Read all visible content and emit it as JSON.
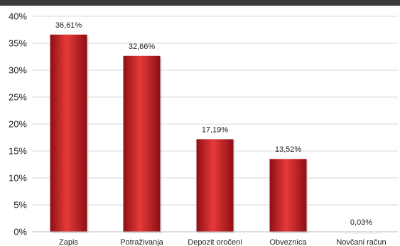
{
  "chart_data": {
    "type": "bar",
    "title": "",
    "xlabel": "",
    "ylabel": "",
    "categories": [
      "Zapis",
      "Potraživanja",
      "Depozit oročeni",
      "Obveznica",
      "Novčani račun"
    ],
    "values": [
      36.61,
      32.66,
      17.19,
      13.52,
      0.03
    ],
    "data_labels": [
      "36,61%",
      "32,66%",
      "17,19%",
      "13,52%",
      "0,03%"
    ],
    "ylim": [
      0,
      40
    ],
    "y_ticks": [
      0,
      5,
      10,
      15,
      20,
      25,
      30,
      35,
      40
    ],
    "y_tick_labels": [
      "0%",
      "5%",
      "10%",
      "15%",
      "20%",
      "25%",
      "30%",
      "35%",
      "40%"
    ],
    "grid": true,
    "bar_color": "#c8161d",
    "bar_highlight_color": "#e63a3a",
    "bar_shadow_color": "#8e0f14",
    "header_color": "#3a3a3a"
  }
}
